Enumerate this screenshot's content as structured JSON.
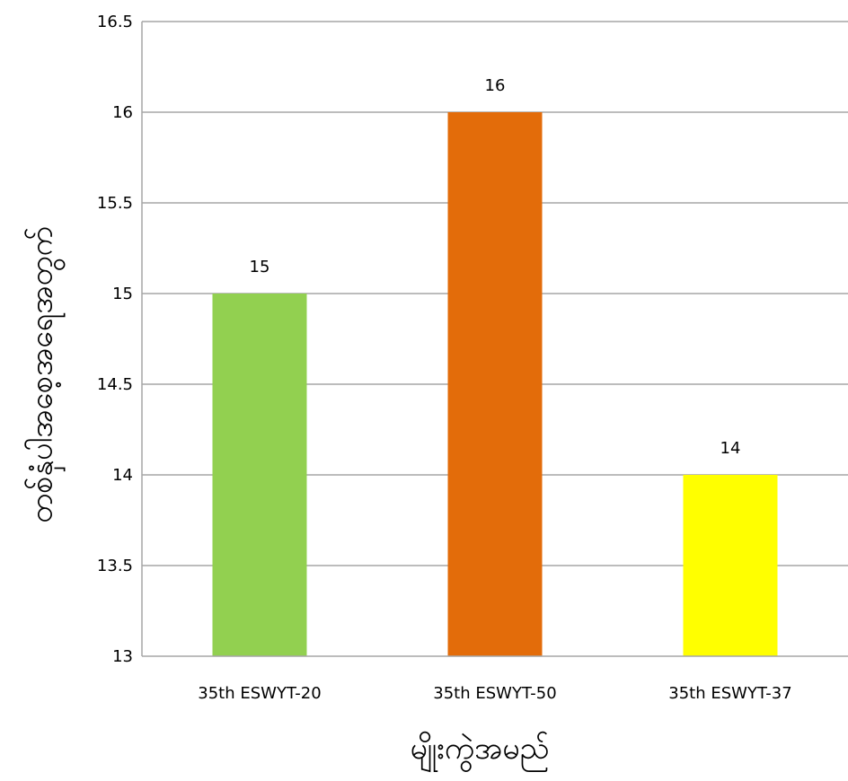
{
  "chart_data": {
    "type": "bar",
    "title": "",
    "xlabel": "မျိုးကွဲအမည်",
    "ylabel": "တစ်နှံပါအစေ့အရေအတွက်",
    "ylim": [
      13,
      16.5
    ],
    "yticks": [
      "13",
      "13.5",
      "14",
      "14.5",
      "15",
      "15.5",
      "16",
      "16.5"
    ],
    "categories": [
      "35th ESWYT-20",
      "35th ESWYT-50",
      "35th ESWYT-37"
    ],
    "values": [
      15,
      16,
      14
    ],
    "data_labels": [
      "15",
      "16",
      "14"
    ],
    "bar_colors": [
      "#92d050",
      "#e36c0a",
      "#ffff00"
    ],
    "grid": true,
    "legend": "none"
  }
}
